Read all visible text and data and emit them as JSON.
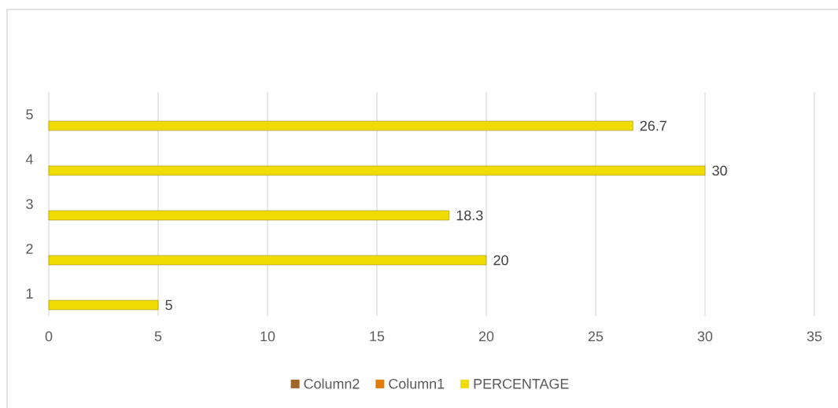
{
  "chart_data": {
    "type": "bar",
    "orientation": "horizontal",
    "categories": [
      "5",
      "4",
      "3",
      "2",
      "1"
    ],
    "series": [
      {
        "name": "Column2",
        "color": "#a0662a",
        "values": [
          null,
          null,
          null,
          null,
          null
        ]
      },
      {
        "name": "Column1",
        "color": "#e07b00",
        "values": [
          null,
          null,
          null,
          null,
          null
        ]
      },
      {
        "name": "PERCENTAGE",
        "color": "#f0dc00",
        "values": [
          26.7,
          30,
          18.3,
          20,
          5
        ]
      }
    ],
    "xlim": [
      0,
      35
    ],
    "xticks": [
      0,
      5,
      10,
      15,
      20,
      25,
      30,
      35
    ],
    "grid": "x",
    "legend": "bottom",
    "data_labels": true
  }
}
